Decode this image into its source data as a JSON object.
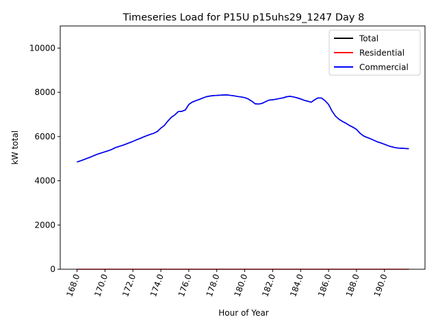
{
  "chart_data": {
    "type": "line",
    "title": "Timeseries Load for P15U p15uhs29_1247  Day 8",
    "xlabel": "Hour of Year",
    "ylabel": "kW total",
    "xlim": [
      166.8,
      192.9
    ],
    "ylim": [
      0,
      11000
    ],
    "x_ticks": [
      168,
      170,
      172,
      174,
      176,
      178,
      180,
      182,
      184,
      186,
      188,
      190
    ],
    "x_tick_labels": [
      "168.0",
      "170.0",
      "172.0",
      "174.0",
      "176.0",
      "178.0",
      "180.0",
      "182.0",
      "184.0",
      "186.0",
      "188.0",
      "190.0"
    ],
    "y_ticks": [
      0,
      2000,
      4000,
      6000,
      8000,
      10000
    ],
    "y_tick_labels": [
      "0",
      "2000",
      "4000",
      "6000",
      "8000",
      "10000"
    ],
    "grid": false,
    "legend_position": "upper right",
    "x": [
      168.0,
      168.25,
      168.5,
      168.75,
      169.0,
      169.25,
      169.5,
      169.75,
      170.0,
      170.25,
      170.5,
      170.75,
      171.0,
      171.25,
      171.5,
      171.75,
      172.0,
      172.25,
      172.5,
      172.75,
      173.0,
      173.25,
      173.5,
      173.75,
      174.0,
      174.25,
      174.5,
      174.75,
      175.0,
      175.25,
      175.5,
      175.75,
      176.0,
      176.25,
      176.5,
      176.75,
      177.0,
      177.25,
      177.5,
      177.75,
      178.0,
      178.25,
      178.5,
      178.75,
      179.0,
      179.25,
      179.5,
      179.75,
      180.0,
      180.25,
      180.5,
      180.75,
      181.0,
      181.25,
      181.5,
      181.75,
      182.0,
      182.25,
      182.5,
      182.75,
      183.0,
      183.25,
      183.5,
      183.75,
      184.0,
      184.25,
      184.5,
      184.75,
      185.0,
      185.25,
      185.5,
      185.75,
      186.0,
      186.25,
      186.5,
      186.75,
      187.0,
      187.25,
      187.5,
      187.75,
      188.0,
      188.25,
      188.5,
      188.75,
      189.0,
      189.25,
      189.5,
      189.75,
      190.0,
      190.25,
      190.5,
      190.75,
      191.0,
      191.25,
      191.5,
      191.75
    ],
    "series": [
      {
        "name": "Total",
        "color": "#000000",
        "values": [
          4850,
          4900,
          4960,
          5020,
          5080,
          5150,
          5210,
          5260,
          5310,
          5360,
          5420,
          5500,
          5550,
          5600,
          5660,
          5720,
          5780,
          5850,
          5910,
          5980,
          6040,
          6100,
          6150,
          6230,
          6380,
          6500,
          6700,
          6870,
          6980,
          7130,
          7140,
          7200,
          7450,
          7560,
          7620,
          7680,
          7740,
          7800,
          7830,
          7850,
          7860,
          7870,
          7880,
          7880,
          7860,
          7840,
          7810,
          7790,
          7760,
          7700,
          7600,
          7480,
          7470,
          7500,
          7580,
          7650,
          7660,
          7690,
          7720,
          7750,
          7800,
          7820,
          7790,
          7750,
          7700,
          7640,
          7600,
          7550,
          7660,
          7750,
          7740,
          7620,
          7450,
          7150,
          6920,
          6780,
          6680,
          6600,
          6500,
          6420,
          6320,
          6150,
          6030,
          5960,
          5900,
          5830,
          5760,
          5710,
          5650,
          5590,
          5540,
          5500,
          5480,
          5470,
          5460,
          5450
        ]
      },
      {
        "name": "Residential",
        "color": "#ff0000",
        "values": [
          0,
          0,
          0,
          0,
          0,
          0,
          0,
          0,
          0,
          0,
          0,
          0,
          0,
          0,
          0,
          0,
          0,
          0,
          0,
          0,
          0,
          0,
          0,
          0,
          0,
          0,
          0,
          0,
          0,
          0,
          0,
          0,
          0,
          0,
          0,
          0,
          0,
          0,
          0,
          0,
          0,
          0,
          0,
          0,
          0,
          0,
          0,
          0,
          0,
          0,
          0,
          0,
          0,
          0,
          0,
          0,
          0,
          0,
          0,
          0,
          0,
          0,
          0,
          0,
          0,
          0,
          0,
          0,
          0,
          0,
          0,
          0,
          0,
          0,
          0,
          0,
          0,
          0,
          0,
          0,
          0,
          0,
          0,
          0,
          0,
          0,
          0,
          0,
          0,
          0,
          0,
          0,
          0,
          0,
          0,
          0
        ]
      },
      {
        "name": "Commercial",
        "color": "#0000ff",
        "values": [
          4850,
          4900,
          4960,
          5020,
          5080,
          5150,
          5210,
          5260,
          5310,
          5360,
          5420,
          5500,
          5550,
          5600,
          5660,
          5720,
          5780,
          5850,
          5910,
          5980,
          6040,
          6100,
          6150,
          6230,
          6380,
          6500,
          6700,
          6870,
          6980,
          7130,
          7140,
          7200,
          7450,
          7560,
          7620,
          7680,
          7740,
          7800,
          7830,
          7850,
          7860,
          7870,
          7880,
          7880,
          7860,
          7840,
          7810,
          7790,
          7760,
          7700,
          7600,
          7480,
          7470,
          7500,
          7580,
          7650,
          7660,
          7690,
          7720,
          7750,
          7800,
          7820,
          7790,
          7750,
          7700,
          7640,
          7600,
          7550,
          7660,
          7750,
          7740,
          7620,
          7450,
          7150,
          6920,
          6780,
          6680,
          6600,
          6500,
          6420,
          6320,
          6150,
          6030,
          5960,
          5900,
          5830,
          5760,
          5710,
          5650,
          5590,
          5540,
          5500,
          5480,
          5470,
          5460,
          5450
        ]
      }
    ]
  }
}
